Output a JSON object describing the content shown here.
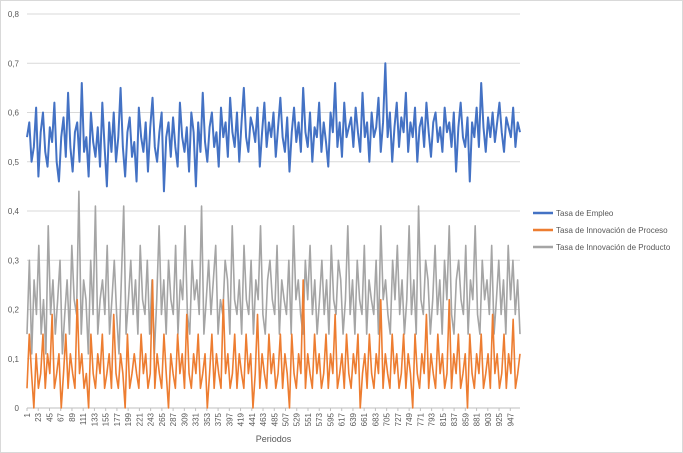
{
  "chart_data": {
    "type": "line",
    "xlabel": "Periodos",
    "ylabel": "",
    "ylim": [
      0,
      0.8
    ],
    "yticks": [
      "0",
      "0,1",
      "0,2",
      "0,3",
      "0,4",
      "0,5",
      "0,6",
      "0,7",
      "0,8"
    ],
    "xlim": [
      1,
      966
    ],
    "xticks": [
      1,
      23,
      45,
      67,
      89,
      111,
      133,
      155,
      177,
      199,
      221,
      243,
      265,
      287,
      309,
      331,
      353,
      375,
      397,
      419,
      441,
      463,
      485,
      507,
      529,
      551,
      573,
      595,
      617,
      639,
      661,
      683,
      705,
      727,
      749,
      771,
      793,
      815,
      837,
      859,
      881,
      903,
      925,
      947
    ],
    "grid": "horizontal",
    "legend_position": "right",
    "colors": {
      "empleo": "#4472c4",
      "proceso": "#ed7d31",
      "producto": "#a5a5a5"
    },
    "series": [
      {
        "name": "Tasa de Empleo",
        "values": [
          0.55,
          0.58,
          0.5,
          0.53,
          0.61,
          0.47,
          0.56,
          0.6,
          0.52,
          0.49,
          0.57,
          0.54,
          0.62,
          0.5,
          0.46,
          0.55,
          0.59,
          0.51,
          0.64,
          0.53,
          0.48,
          0.56,
          0.58,
          0.5,
          0.66,
          0.52,
          0.55,
          0.47,
          0.6,
          0.54,
          0.51,
          0.57,
          0.49,
          0.62,
          0.53,
          0.45,
          0.58,
          0.52,
          0.6,
          0.5,
          0.55,
          0.65,
          0.53,
          0.47,
          0.56,
          0.59,
          0.51,
          0.54,
          0.46,
          0.61,
          0.55,
          0.52,
          0.58,
          0.48,
          0.57,
          0.63,
          0.53,
          0.5,
          0.56,
          0.6,
          0.44,
          0.55,
          0.58,
          0.51,
          0.59,
          0.53,
          0.49,
          0.62,
          0.55,
          0.52,
          0.57,
          0.48,
          0.6,
          0.56,
          0.45,
          0.58,
          0.52,
          0.64,
          0.54,
          0.5,
          0.57,
          0.6,
          0.53,
          0.56,
          0.49,
          0.61,
          0.55,
          0.58,
          0.51,
          0.63,
          0.56,
          0.53,
          0.6,
          0.5,
          0.58,
          0.65,
          0.55,
          0.52,
          0.59,
          0.57,
          0.54,
          0.61,
          0.49,
          0.56,
          0.62,
          0.53,
          0.58,
          0.55,
          0.6,
          0.51,
          0.57,
          0.63,
          0.55,
          0.52,
          0.59,
          0.48,
          0.56,
          0.61,
          0.54,
          0.58,
          0.52,
          0.65,
          0.56,
          0.53,
          0.6,
          0.5,
          0.57,
          0.55,
          0.62,
          0.52,
          0.58,
          0.54,
          0.49,
          0.6,
          0.56,
          0.66,
          0.53,
          0.58,
          0.51,
          0.62,
          0.55,
          0.57,
          0.59,
          0.53,
          0.61,
          0.56,
          0.52,
          0.64,
          0.55,
          0.58,
          0.5,
          0.6,
          0.55,
          0.57,
          0.63,
          0.52,
          0.58,
          0.7,
          0.55,
          0.6,
          0.5,
          0.57,
          0.62,
          0.53,
          0.59,
          0.56,
          0.64,
          0.52,
          0.58,
          0.55,
          0.61,
          0.5,
          0.57,
          0.59,
          0.53,
          0.62,
          0.56,
          0.51,
          0.58,
          0.6,
          0.54,
          0.57,
          0.52,
          0.61,
          0.56,
          0.58,
          0.53,
          0.6,
          0.48,
          0.57,
          0.62,
          0.55,
          0.53,
          0.59,
          0.46,
          0.58,
          0.55,
          0.61,
          0.53,
          0.66,
          0.57,
          0.52,
          0.59,
          0.55,
          0.6,
          0.54,
          0.58,
          0.62,
          0.56,
          0.52,
          0.59,
          0.57,
          0.55,
          0.61,
          0.53,
          0.58,
          0.56
        ]
      },
      {
        "name": "Tasa de Innovación de Proceso",
        "values": [
          0.04,
          0.15,
          0.07,
          0.0,
          0.11,
          0.04,
          0.07,
          0.15,
          0.04,
          0.11,
          0.07,
          0.19,
          0.04,
          0.07,
          0.11,
          0.0,
          0.07,
          0.15,
          0.04,
          0.11,
          0.07,
          0.04,
          0.22,
          0.07,
          0.11,
          0.04,
          0.07,
          0.0,
          0.15,
          0.07,
          0.04,
          0.11,
          0.07,
          0.15,
          0.04,
          0.07,
          0.11,
          0.04,
          0.19,
          0.07,
          0.04,
          0.11,
          0.07,
          0.0,
          0.15,
          0.04,
          0.07,
          0.11,
          0.07,
          0.04,
          0.15,
          0.07,
          0.11,
          0.04,
          0.07,
          0.26,
          0.04,
          0.11,
          0.07,
          0.04,
          0.15,
          0.07,
          0.0,
          0.11,
          0.07,
          0.04,
          0.15,
          0.07,
          0.11,
          0.04,
          0.19,
          0.07,
          0.04,
          0.11,
          0.07,
          0.15,
          0.04,
          0.07,
          0.11,
          0.0,
          0.07,
          0.15,
          0.04,
          0.11,
          0.07,
          0.04,
          0.22,
          0.07,
          0.11,
          0.04,
          0.07,
          0.15,
          0.04,
          0.11,
          0.07,
          0.04,
          0.15,
          0.07,
          0.11,
          0.0,
          0.07,
          0.19,
          0.04,
          0.11,
          0.07,
          0.04,
          0.15,
          0.07,
          0.11,
          0.04,
          0.07,
          0.15,
          0.04,
          0.11,
          0.07,
          0.0,
          0.15,
          0.07,
          0.04,
          0.11,
          0.07,
          0.26,
          0.04,
          0.11,
          0.07,
          0.04,
          0.15,
          0.07,
          0.11,
          0.04,
          0.07,
          0.15,
          0.04,
          0.11,
          0.07,
          0.19,
          0.04,
          0.07,
          0.11,
          0.04,
          0.15,
          0.07,
          0.04,
          0.11,
          0.07,
          0.15,
          0.0,
          0.07,
          0.11,
          0.04,
          0.15,
          0.07,
          0.04,
          0.11,
          0.07,
          0.22,
          0.04,
          0.11,
          0.07,
          0.04,
          0.15,
          0.07,
          0.11,
          0.04,
          0.07,
          0.15,
          0.04,
          0.11,
          0.07,
          0.0,
          0.15,
          0.07,
          0.04,
          0.11,
          0.07,
          0.19,
          0.04,
          0.11,
          0.07,
          0.04,
          0.15,
          0.07,
          0.11,
          0.04,
          0.07,
          0.22,
          0.04,
          0.11,
          0.07,
          0.15,
          0.04,
          0.07,
          0.11,
          0.0,
          0.15,
          0.07,
          0.04,
          0.11,
          0.07,
          0.15,
          0.04,
          0.07,
          0.11,
          0.04,
          0.19,
          0.07,
          0.11,
          0.04,
          0.07,
          0.15,
          0.04,
          0.11,
          0.07,
          0.18,
          0.04,
          0.07,
          0.11
        ]
      },
      {
        "name": "Tasa de Innovación de Producto",
        "values": [
          0.15,
          0.3,
          0.11,
          0.26,
          0.19,
          0.33,
          0.15,
          0.22,
          0.11,
          0.37,
          0.19,
          0.26,
          0.15,
          0.22,
          0.3,
          0.11,
          0.19,
          0.26,
          0.15,
          0.33,
          0.22,
          0.19,
          0.44,
          0.15,
          0.26,
          0.22,
          0.11,
          0.3,
          0.19,
          0.41,
          0.15,
          0.22,
          0.26,
          0.19,
          0.33,
          0.15,
          0.22,
          0.3,
          0.19,
          0.11,
          0.26,
          0.41,
          0.15,
          0.22,
          0.3,
          0.19,
          0.26,
          0.15,
          0.33,
          0.22,
          0.19,
          0.3,
          0.15,
          0.26,
          0.11,
          0.22,
          0.37,
          0.19,
          0.26,
          0.15,
          0.3,
          0.22,
          0.19,
          0.33,
          0.15,
          0.26,
          0.22,
          0.37,
          0.19,
          0.15,
          0.3,
          0.22,
          0.26,
          0.19,
          0.41,
          0.15,
          0.22,
          0.3,
          0.19,
          0.26,
          0.33,
          0.15,
          0.22,
          0.19,
          0.3,
          0.26,
          0.15,
          0.37,
          0.22,
          0.19,
          0.26,
          0.15,
          0.33,
          0.22,
          0.19,
          0.3,
          0.15,
          0.26,
          0.22,
          0.37,
          0.19,
          0.15,
          0.26,
          0.3,
          0.22,
          0.19,
          0.33,
          0.15,
          0.26,
          0.22,
          0.19,
          0.3,
          0.15,
          0.37,
          0.22,
          0.26,
          0.19,
          0.15,
          0.3,
          0.22,
          0.33,
          0.19,
          0.26,
          0.15,
          0.22,
          0.3,
          0.19,
          0.26,
          0.15,
          0.33,
          0.22,
          0.19,
          0.3,
          0.26,
          0.15,
          0.22,
          0.37,
          0.19,
          0.26,
          0.15,
          0.3,
          0.22,
          0.19,
          0.33,
          0.15,
          0.26,
          0.22,
          0.19,
          0.3,
          0.15,
          0.37,
          0.22,
          0.26,
          0.19,
          0.15,
          0.3,
          0.22,
          0.33,
          0.19,
          0.26,
          0.15,
          0.22,
          0.37,
          0.19,
          0.26,
          0.15,
          0.41,
          0.22,
          0.19,
          0.3,
          0.26,
          0.15,
          0.22,
          0.33,
          0.19,
          0.26,
          0.15,
          0.3,
          0.22,
          0.37,
          0.19,
          0.15,
          0.26,
          0.3,
          0.22,
          0.19,
          0.33,
          0.15,
          0.26,
          0.22,
          0.37,
          0.19,
          0.15,
          0.3,
          0.22,
          0.26,
          0.19,
          0.33,
          0.15,
          0.22,
          0.3,
          0.19,
          0.26,
          0.15,
          0.33,
          0.22,
          0.3,
          0.19,
          0.26,
          0.15
        ]
      }
    ]
  }
}
